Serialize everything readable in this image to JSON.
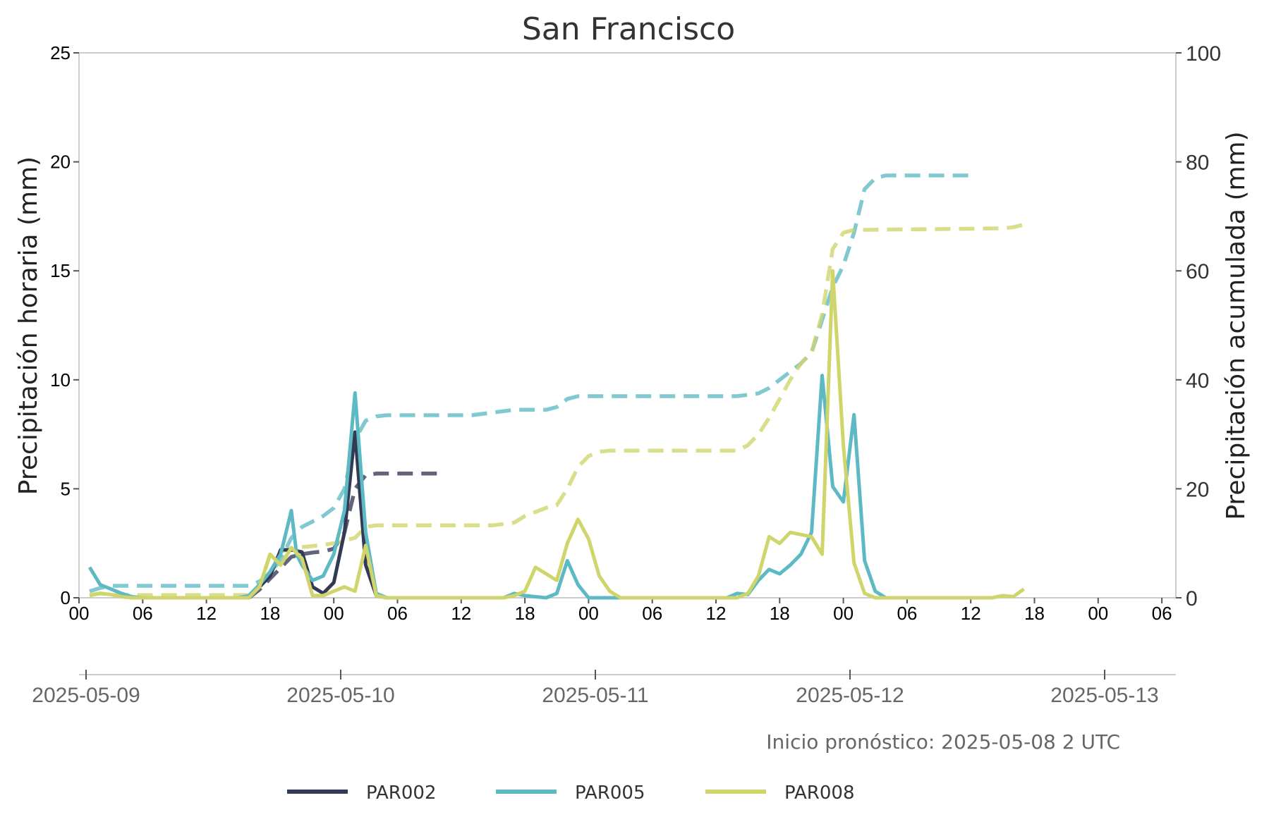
{
  "chart_data": {
    "type": "line",
    "title": "San Francisco",
    "ylabel_left": "Precipitación horaria (mm)",
    "ylabel_right": "Precipitación acumulada (mm)",
    "note": "Inicio pronóstico: 2025-05-08 2 UTC",
    "ylim_left": [
      0,
      25
    ],
    "ylim_right": [
      0,
      100
    ],
    "xlim_hours": [
      0,
      102
    ],
    "yticks_left": [
      "0",
      "5",
      "10",
      "15",
      "20",
      "25"
    ],
    "yticks_right": [
      "0",
      "20",
      "40",
      "60",
      "80",
      "100"
    ],
    "xticks_hours": [
      {
        "h": 0,
        "label": "00"
      },
      {
        "h": 6,
        "label": "06"
      },
      {
        "h": 12,
        "label": "12"
      },
      {
        "h": 18,
        "label": "18"
      },
      {
        "h": 24,
        "label": "00"
      },
      {
        "h": 30,
        "label": "06"
      },
      {
        "h": 36,
        "label": "12"
      },
      {
        "h": 42,
        "label": "18"
      },
      {
        "h": 48,
        "label": "00"
      },
      {
        "h": 54,
        "label": "06"
      },
      {
        "h": 60,
        "label": "12"
      },
      {
        "h": 66,
        "label": "18"
      },
      {
        "h": 72,
        "label": "00"
      },
      {
        "h": 78,
        "label": "06"
      },
      {
        "h": 84,
        "label": "12"
      },
      {
        "h": 90,
        "label": "18"
      },
      {
        "h": 96,
        "label": "00"
      },
      {
        "h": 102,
        "label": "06"
      }
    ],
    "date_axis": [
      "2025-05-09",
      "2025-05-10",
      "2025-05-11",
      "2025-05-12",
      "2025-05-13"
    ],
    "grid": false,
    "legend_position": "bottom-center",
    "series": [
      {
        "name": "PAR002",
        "color": "#333a56",
        "hourly": [
          [
            16,
            0
          ],
          [
            17,
            0.5
          ],
          [
            18,
            1.0
          ],
          [
            19,
            2.2
          ],
          [
            20,
            2.2
          ],
          [
            21,
            2.1
          ],
          [
            22,
            0.5
          ],
          [
            23,
            0.2
          ],
          [
            24,
            0.7
          ],
          [
            25,
            3.0
          ],
          [
            26,
            7.6
          ],
          [
            27,
            1.5
          ],
          [
            28,
            0.1
          ],
          [
            29,
            0
          ]
        ],
        "accum": [
          [
            16,
            0
          ],
          [
            17,
            1.5
          ],
          [
            18,
            3.5
          ],
          [
            19,
            5.5
          ],
          [
            20,
            7.5
          ],
          [
            21,
            8.0
          ],
          [
            22,
            8.3
          ],
          [
            23,
            8.5
          ],
          [
            24,
            9.0
          ],
          [
            25,
            12.0
          ],
          [
            26,
            20.0
          ],
          [
            27,
            22.5
          ],
          [
            28,
            22.8
          ],
          [
            29,
            22.8
          ],
          [
            34,
            22.8
          ]
        ]
      },
      {
        "name": "PAR005",
        "color": "#5dbac4",
        "hourly": [
          [
            1,
            1.4
          ],
          [
            2,
            0.6
          ],
          [
            3,
            0.4
          ],
          [
            4,
            0.2
          ],
          [
            5,
            0.05
          ],
          [
            6,
            0
          ],
          [
            15,
            0
          ],
          [
            16,
            0.1
          ],
          [
            17,
            0.6
          ],
          [
            18,
            1.2
          ],
          [
            19,
            2.0
          ],
          [
            19.5,
            3.0
          ],
          [
            20,
            4.0
          ],
          [
            20.5,
            2.0
          ],
          [
            21,
            1.5
          ],
          [
            22,
            0.8
          ],
          [
            23,
            1.0
          ],
          [
            24,
            2.0
          ],
          [
            25,
            4.0
          ],
          [
            26,
            9.4
          ],
          [
            27,
            3.0
          ],
          [
            28,
            0.2
          ],
          [
            29,
            0
          ],
          [
            40,
            0
          ],
          [
            41,
            0.2
          ],
          [
            42,
            0.1
          ],
          [
            43,
            0.05
          ],
          [
            44,
            0
          ],
          [
            45,
            0.2
          ],
          [
            46,
            1.7
          ],
          [
            47,
            0.6
          ],
          [
            48,
            0
          ],
          [
            49,
            0
          ],
          [
            61,
            0
          ],
          [
            62,
            0.2
          ],
          [
            63,
            0.15
          ],
          [
            64,
            0.8
          ],
          [
            65,
            1.3
          ],
          [
            66,
            1.1
          ],
          [
            67,
            1.5
          ],
          [
            68,
            2.0
          ],
          [
            69,
            3.0
          ],
          [
            70,
            10.2
          ],
          [
            71,
            5.1
          ],
          [
            72,
            4.4
          ],
          [
            73,
            8.4
          ],
          [
            74,
            1.7
          ],
          [
            75,
            0.3
          ],
          [
            76,
            0
          ],
          [
            77,
            0
          ]
        ],
        "accum": [
          [
            1,
            1.2
          ],
          [
            2,
            1.8
          ],
          [
            3,
            2.2
          ],
          [
            4,
            2.2
          ],
          [
            16,
            2.2
          ],
          [
            17,
            3.0
          ],
          [
            18,
            4.5
          ],
          [
            19,
            7.0
          ],
          [
            20,
            11.0
          ],
          [
            21,
            13.0
          ],
          [
            22,
            14.0
          ],
          [
            23,
            15.0
          ],
          [
            24,
            16.5
          ],
          [
            25,
            20.0
          ],
          [
            26,
            29.0
          ],
          [
            27,
            32.5
          ],
          [
            28,
            33.3
          ],
          [
            29,
            33.5
          ],
          [
            37,
            33.5
          ],
          [
            39,
            34.0
          ],
          [
            41,
            34.5
          ],
          [
            44,
            34.5
          ],
          [
            45,
            35.0
          ],
          [
            46,
            36.5
          ],
          [
            47,
            37.0
          ],
          [
            62,
            37.0
          ],
          [
            64,
            37.5
          ],
          [
            65,
            38.5
          ],
          [
            66,
            40.0
          ],
          [
            67,
            41.5
          ],
          [
            68,
            43.0
          ],
          [
            69,
            45.0
          ],
          [
            70,
            51.0
          ],
          [
            71,
            57.0
          ],
          [
            72,
            61.0
          ],
          [
            73,
            67.0
          ],
          [
            74,
            75.0
          ],
          [
            75,
            77.0
          ],
          [
            76,
            77.5
          ],
          [
            84,
            77.5
          ]
        ]
      },
      {
        "name": "PAR008",
        "color": "#cfd56a",
        "hourly": [
          [
            1,
            0.1
          ],
          [
            2,
            0.2
          ],
          [
            3,
            0.15
          ],
          [
            4,
            0.05
          ],
          [
            5,
            0
          ],
          [
            16,
            0
          ],
          [
            17,
            0.5
          ],
          [
            18,
            2.0
          ],
          [
            19,
            1.5
          ],
          [
            20,
            2.3
          ],
          [
            21,
            1.8
          ],
          [
            22,
            0.1
          ],
          [
            23,
            0.1
          ],
          [
            24,
            0.3
          ],
          [
            25,
            0.5
          ],
          [
            26,
            0.3
          ],
          [
            27,
            2.4
          ],
          [
            28,
            0.1
          ],
          [
            29,
            0
          ],
          [
            40,
            0
          ],
          [
            41,
            0.1
          ],
          [
            42,
            0.3
          ],
          [
            43,
            1.4
          ],
          [
            44,
            1.1
          ],
          [
            45,
            0.8
          ],
          [
            46,
            2.5
          ],
          [
            47,
            3.6
          ],
          [
            48,
            2.7
          ],
          [
            49,
            1.0
          ],
          [
            50,
            0.3
          ],
          [
            51,
            0
          ],
          [
            62,
            0
          ],
          [
            63,
            0.2
          ],
          [
            64,
            1.0
          ],
          [
            65,
            2.8
          ],
          [
            66,
            2.5
          ],
          [
            67,
            3.0
          ],
          [
            68,
            2.9
          ],
          [
            69,
            2.8
          ],
          [
            70,
            2.0
          ],
          [
            71,
            15.0
          ],
          [
            72,
            7.0
          ],
          [
            73,
            1.6
          ],
          [
            74,
            0.2
          ],
          [
            75,
            0
          ],
          [
            86,
            0
          ],
          [
            87,
            0.1
          ],
          [
            88,
            0.05
          ],
          [
            89,
            0.4
          ]
        ],
        "accum": [
          [
            1,
            0.5
          ],
          [
            2,
            0.8
          ],
          [
            3,
            0.5
          ],
          [
            16,
            0.5
          ],
          [
            17,
            2.0
          ],
          [
            18,
            8.0
          ],
          [
            19,
            8.5
          ],
          [
            20,
            9.0
          ],
          [
            21,
            9.3
          ],
          [
            22,
            9.5
          ],
          [
            23,
            9.7
          ],
          [
            24,
            10.0
          ],
          [
            25,
            10.5
          ],
          [
            26,
            11.0
          ],
          [
            27,
            13.0
          ],
          [
            28,
            13.3
          ],
          [
            29,
            13.3
          ],
          [
            39,
            13.3
          ],
          [
            41,
            13.8
          ],
          [
            42,
            15.0
          ],
          [
            44,
            16.5
          ],
          [
            45,
            17.0
          ],
          [
            46,
            20.0
          ],
          [
            47,
            24.0
          ],
          [
            48,
            26.0
          ],
          [
            49,
            26.8
          ],
          [
            50,
            27.0
          ],
          [
            62,
            27.0
          ],
          [
            63,
            28.0
          ],
          [
            64,
            30.0
          ],
          [
            65,
            33.0
          ],
          [
            66,
            36.5
          ],
          [
            67,
            40.0
          ],
          [
            68,
            43.0
          ],
          [
            69,
            45.0
          ],
          [
            70,
            52.0
          ],
          [
            71,
            64.0
          ],
          [
            72,
            67.0
          ],
          [
            73,
            67.5
          ],
          [
            87,
            67.8
          ],
          [
            88,
            68.0
          ],
          [
            89,
            68.5
          ]
        ]
      }
    ]
  }
}
